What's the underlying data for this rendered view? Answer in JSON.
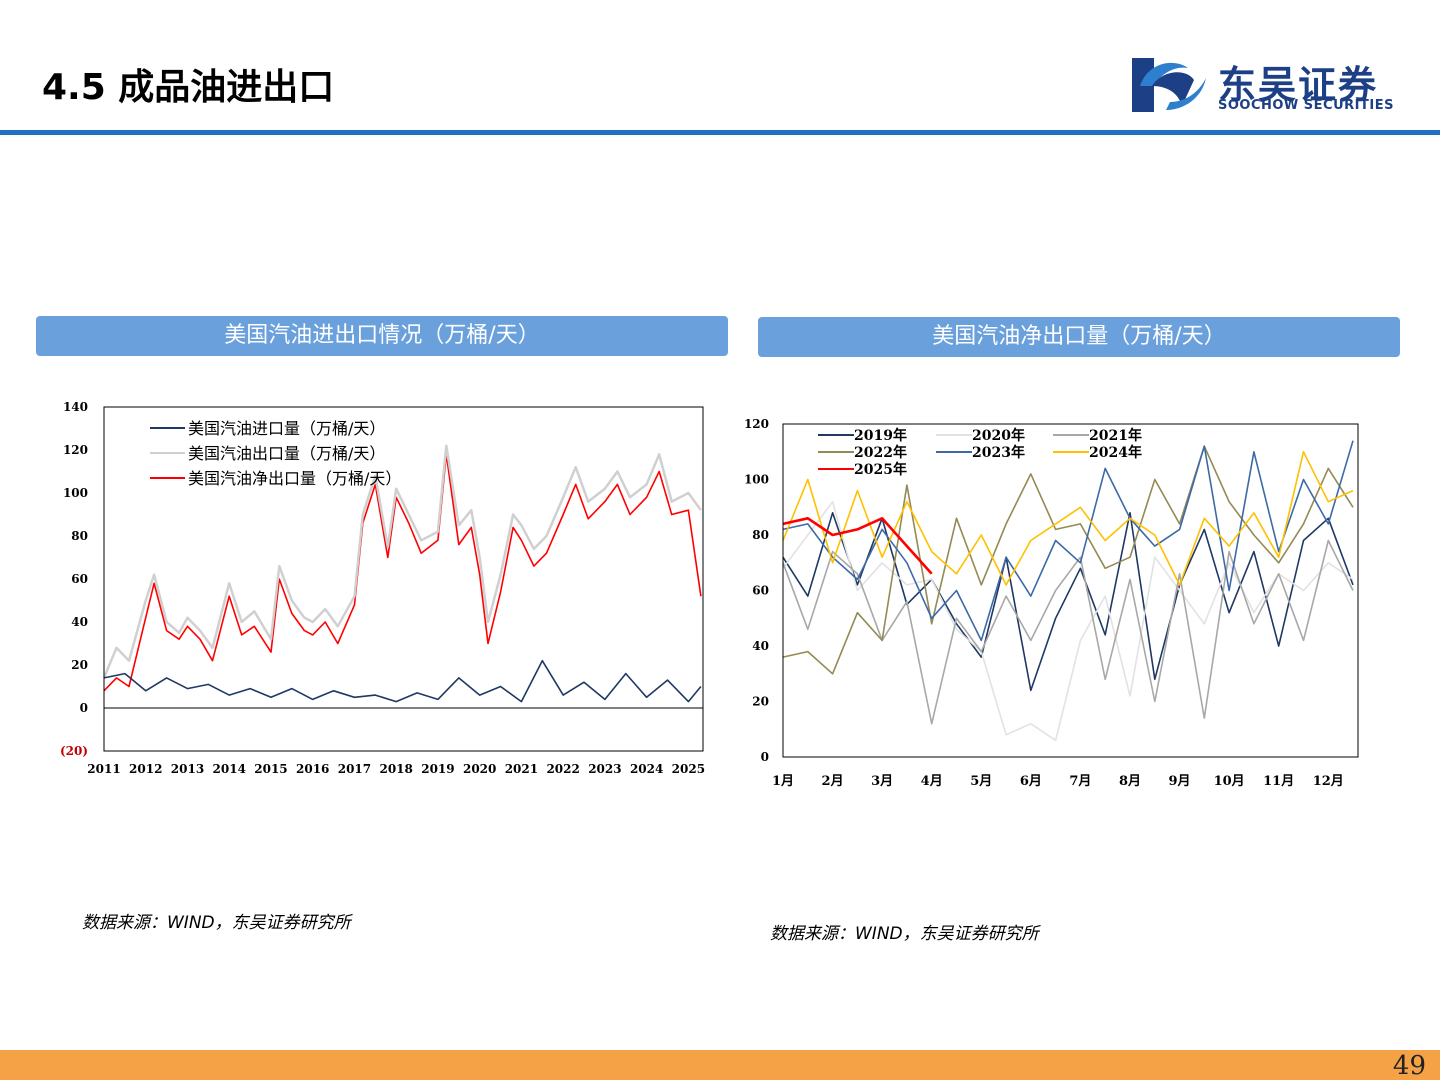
{
  "page": {
    "title": "4.5 成品油进出口",
    "page_number": "49",
    "logo_cn": "东吴证券",
    "logo_en": "SOOCHOW SECURITIES",
    "colors": {
      "accent_blue": "#1f6fc2",
      "panel_blue": "#6aa0dc",
      "bottom_orange": "#f4a245",
      "logo_navy": "#1d3f86"
    }
  },
  "left": {
    "panel_title": "美国汽油进出口情况（万桶/天）",
    "source": "数据来源：WIND，东吴证券研究所"
  },
  "right": {
    "panel_title": "美国汽油净出口量（万桶/天）",
    "source": "数据来源：WIND，东吴证券研究所"
  },
  "chart_data": [
    {
      "type": "line",
      "x_tick_labels": [
        "2011",
        "2012",
        "2013",
        "2014",
        "2015",
        "2016",
        "2017",
        "2018",
        "2019",
        "2020",
        "2021",
        "2022",
        "2023",
        "2024",
        "2025"
      ],
      "y_tick_labels": [
        "(20)",
        "0",
        "20",
        "40",
        "60",
        "80",
        "100",
        "120",
        "140"
      ],
      "ylim": [
        -20,
        140
      ],
      "x_range": [
        2011.0,
        2025.35
      ],
      "legend_position": "top-left",
      "series": [
        {
          "name": "美国汽油进口量（万桶/天）",
          "color": "#1f3864",
          "x": [
            2011.0,
            2011.5,
            2012.0,
            2012.5,
            2013.0,
            2013.5,
            2014.0,
            2014.5,
            2015.0,
            2015.5,
            2016.0,
            2016.5,
            2017.0,
            2017.5,
            2018.0,
            2018.5,
            2019.0,
            2019.5,
            2020.0,
            2020.5,
            2021.0,
            2021.5,
            2022.0,
            2022.5,
            2023.0,
            2023.5,
            2024.0,
            2024.5,
            2025.0,
            2025.3
          ],
          "values": [
            14,
            16,
            8,
            14,
            9,
            11,
            6,
            9,
            5,
            9,
            4,
            8,
            5,
            6,
            3,
            7,
            4,
            14,
            6,
            10,
            3,
            22,
            6,
            12,
            4,
            16,
            5,
            13,
            3,
            10
          ]
        },
        {
          "name": "美国汽油出口量（万桶/天）",
          "color": "#d0d0d0",
          "x": [
            2011.0,
            2011.3,
            2011.6,
            2012.0,
            2012.2,
            2012.5,
            2012.8,
            2013.0,
            2013.3,
            2013.6,
            2014.0,
            2014.3,
            2014.6,
            2015.0,
            2015.2,
            2015.5,
            2015.8,
            2016.0,
            2016.3,
            2016.6,
            2017.0,
            2017.2,
            2017.5,
            2017.8,
            2018.0,
            2018.3,
            2018.6,
            2019.0,
            2019.2,
            2019.5,
            2019.8,
            2020.0,
            2020.2,
            2020.5,
            2020.8,
            2021.0,
            2021.3,
            2021.6,
            2022.0,
            2022.3,
            2022.6,
            2023.0,
            2023.3,
            2023.6,
            2024.0,
            2024.3,
            2024.6,
            2025.0,
            2025.3
          ],
          "values": [
            14,
            28,
            22,
            50,
            62,
            40,
            35,
            42,
            36,
            28,
            58,
            40,
            45,
            32,
            66,
            50,
            42,
            40,
            46,
            38,
            52,
            90,
            108,
            75,
            102,
            90,
            78,
            82,
            122,
            85,
            92,
            70,
            40,
            62,
            90,
            85,
            74,
            80,
            98,
            112,
            96,
            102,
            110,
            98,
            104,
            118,
            96,
            100,
            92
          ]
        },
        {
          "name": "美国汽油净出口量（万桶/天）",
          "color": "#ff0000",
          "x": [
            2011.0,
            2011.3,
            2011.6,
            2012.0,
            2012.2,
            2012.5,
            2012.8,
            2013.0,
            2013.3,
            2013.6,
            2014.0,
            2014.3,
            2014.6,
            2015.0,
            2015.2,
            2015.5,
            2015.8,
            2016.0,
            2016.3,
            2016.6,
            2017.0,
            2017.2,
            2017.5,
            2017.8,
            2018.0,
            2018.3,
            2018.6,
            2019.0,
            2019.2,
            2019.5,
            2019.8,
            2020.0,
            2020.2,
            2020.5,
            2020.8,
            2021.0,
            2021.3,
            2021.6,
            2022.0,
            2022.3,
            2022.6,
            2023.0,
            2023.3,
            2023.6,
            2024.0,
            2024.3,
            2024.6,
            2025.0,
            2025.3
          ],
          "values": [
            8,
            14,
            10,
            42,
            58,
            36,
            32,
            38,
            32,
            22,
            52,
            34,
            38,
            26,
            60,
            44,
            36,
            34,
            40,
            30,
            48,
            86,
            104,
            70,
            98,
            86,
            72,
            78,
            118,
            76,
            84,
            62,
            30,
            54,
            84,
            78,
            66,
            72,
            90,
            104,
            88,
            96,
            104,
            90,
            98,
            110,
            90,
            92,
            52
          ]
        }
      ]
    },
    {
      "type": "line",
      "x_tick_labels": [
        "1月",
        "2月",
        "3月",
        "4月",
        "5月",
        "6月",
        "7月",
        "8月",
        "9月",
        "10月",
        "11月",
        "12月"
      ],
      "y_tick_labels": [
        "0",
        "20",
        "40",
        "60",
        "80",
        "100",
        "120"
      ],
      "ylim": [
        0,
        120
      ],
      "legend_position": "top-left",
      "series": [
        {
          "name": "2019年",
          "color": "#1f3864",
          "x": [
            1,
            1.5,
            2,
            2.5,
            3,
            3.5,
            4,
            4.5,
            5,
            5.5,
            6,
            6.5,
            7,
            7.5,
            8,
            8.5,
            9,
            9.5,
            10,
            10.5,
            11,
            11.5,
            12,
            12.5
          ],
          "values": [
            72,
            58,
            88,
            62,
            86,
            55,
            64,
            48,
            36,
            72,
            24,
            50,
            68,
            44,
            88,
            28,
            62,
            82,
            52,
            74,
            40,
            78,
            86,
            62
          ]
        },
        {
          "name": "2020年",
          "color": "#e2e2e2",
          "x": [
            1,
            1.5,
            2,
            2.5,
            3,
            3.5,
            4,
            4.5,
            5,
            5.5,
            6,
            6.5,
            7,
            7.5,
            8,
            8.5,
            9,
            9.5,
            10,
            10.5,
            11,
            11.5,
            12,
            12.5
          ],
          "values": [
            68,
            80,
            92,
            60,
            70,
            62,
            64,
            46,
            38,
            8,
            12,
            6,
            42,
            58,
            22,
            72,
            60,
            48,
            70,
            52,
            66,
            60,
            70,
            64
          ]
        },
        {
          "name": "2021年",
          "color": "#a8a8a8",
          "x": [
            1,
            1.5,
            2,
            2.5,
            3,
            3.5,
            4,
            4.5,
            5,
            5.5,
            6,
            6.5,
            7,
            7.5,
            8,
            8.5,
            9,
            9.5,
            10,
            10.5,
            11,
            11.5,
            12,
            12.5
          ],
          "values": [
            70,
            46,
            74,
            66,
            42,
            56,
            12,
            50,
            38,
            58,
            42,
            60,
            72,
            28,
            64,
            20,
            66,
            14,
            74,
            48,
            66,
            42,
            78,
            60
          ]
        },
        {
          "name": "2022年",
          "color": "#948a54",
          "x": [
            1,
            1.5,
            2,
            2.5,
            3,
            3.5,
            4,
            4.5,
            5,
            5.5,
            6,
            6.5,
            7,
            7.5,
            8,
            8.5,
            9,
            9.5,
            10,
            10.5,
            11,
            11.5,
            12,
            12.5
          ],
          "values": [
            36,
            38,
            30,
            52,
            42,
            98,
            48,
            86,
            62,
            84,
            102,
            82,
            84,
            68,
            72,
            100,
            84,
            112,
            92,
            80,
            70,
            84,
            104,
            90
          ]
        },
        {
          "name": "2023年",
          "color": "#3d6aa6",
          "x": [
            1,
            1.5,
            2,
            2.5,
            3,
            3.5,
            4,
            4.5,
            5,
            5.5,
            6,
            6.5,
            7,
            7.5,
            8,
            8.5,
            9,
            9.5,
            10,
            10.5,
            11,
            11.5,
            12,
            12.5
          ],
          "values": [
            82,
            84,
            72,
            64,
            82,
            70,
            50,
            60,
            42,
            72,
            58,
            78,
            70,
            104,
            86,
            76,
            82,
            112,
            60,
            110,
            74,
            100,
            84,
            114
          ]
        },
        {
          "name": "2024年",
          "color": "#ffc000",
          "x": [
            1,
            1.5,
            2,
            2.5,
            3,
            3.5,
            4,
            4.5,
            5,
            5.5,
            6,
            6.5,
            7,
            7.5,
            8,
            8.5,
            9,
            9.5,
            10,
            10.5,
            11,
            11.5,
            12,
            12.5
          ],
          "values": [
            78,
            100,
            70,
            96,
            72,
            92,
            74,
            66,
            80,
            62,
            78,
            84,
            90,
            78,
            86,
            80,
            62,
            86,
            76,
            88,
            72,
            110,
            92,
            96
          ]
        },
        {
          "name": "2025年",
          "color": "#ff0000",
          "x": [
            1,
            1.5,
            2,
            2.5,
            3,
            3.5,
            4
          ],
          "values": [
            84,
            86,
            80,
            82,
            86,
            76,
            66
          ]
        }
      ]
    }
  ]
}
